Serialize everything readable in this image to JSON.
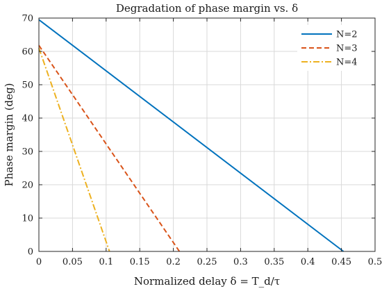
{
  "chart_data": {
    "type": "line",
    "title": "Degradation of phase margin vs. δ",
    "xlabel": "Normalized delay δ = T_d/τ",
    "ylabel": "Phase margin (deg)",
    "xlim": [
      0,
      0.5
    ],
    "ylim": [
      0,
      70
    ],
    "xticks": [
      0,
      0.05,
      0.1,
      0.15,
      0.2,
      0.25,
      0.3,
      0.35,
      0.4,
      0.45,
      0.5
    ],
    "yticks": [
      0,
      10,
      20,
      30,
      40,
      50,
      60,
      70
    ],
    "xtick_labels": [
      "0",
      "0.05",
      "0.1",
      "0.15",
      "0.2",
      "0.25",
      "0.3",
      "0.35",
      "0.4",
      "0.45",
      "0.5"
    ],
    "ytick_labels": [
      "0",
      "10",
      "20",
      "30",
      "40",
      "50",
      "60",
      "70"
    ],
    "grid": true,
    "legend_position": "top-right",
    "series": [
      {
        "name": "N=2",
        "color": "#0072BD",
        "style": "solid",
        "x": [
          0,
          0.453
        ],
        "y": [
          69.5,
          0
        ]
      },
      {
        "name": "N=3",
        "color": "#D95319",
        "style": "dashed",
        "x": [
          0,
          0.209
        ],
        "y": [
          61.8,
          0
        ]
      },
      {
        "name": "N=4",
        "color": "#EDB120",
        "style": "dashdot",
        "x": [
          0,
          0.105
        ],
        "y": [
          61.0,
          0
        ]
      }
    ]
  }
}
